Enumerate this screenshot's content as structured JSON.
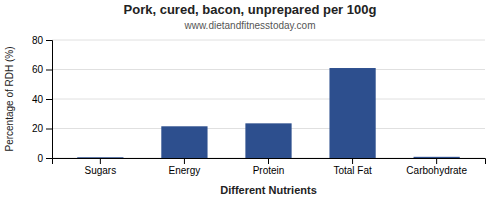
{
  "chart_data": {
    "type": "bar",
    "title": "Pork, cured, bacon, unprepared per 100g",
    "subtitle": "www.dietandfitnesstoday.com",
    "xlabel": "Different Nutrients",
    "ylabel": "Percentage of RDH (%)",
    "categories": [
      "Sugars",
      "Energy",
      "Protein",
      "Total Fat",
      "Carbohydrate"
    ],
    "values": [
      0.5,
      21.5,
      23.5,
      61.0,
      0.8
    ],
    "color": "#2d4f8e",
    "ylim": [
      0,
      80
    ],
    "yticks": [
      0,
      20,
      40,
      60,
      80
    ],
    "grid": true
  }
}
